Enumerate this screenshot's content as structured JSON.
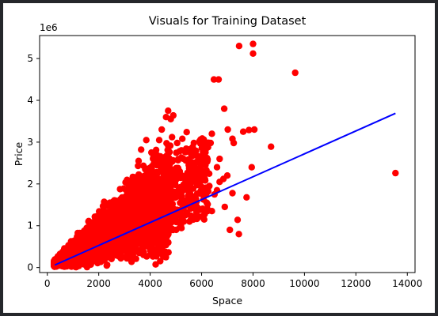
{
  "chart_data": {
    "type": "scatter",
    "title": "Visuals for Training Dataset",
    "xlabel": "Space",
    "ylabel": "Price",
    "y_offset_text": "1e6",
    "xlim": [
      -300,
      14300
    ],
    "ylim": [
      -0.12,
      5.55
    ],
    "x_ticks": [
      0,
      2000,
      4000,
      6000,
      8000,
      10000,
      12000,
      14000
    ],
    "x_tick_labels": [
      "0",
      "2000",
      "4000",
      "6000",
      "8000",
      "10000",
      "12000",
      "14000"
    ],
    "y_ticks": [
      0,
      1,
      2,
      3,
      4,
      5
    ],
    "y_tick_labels": [
      "0",
      "1",
      "2",
      "3",
      "4",
      "5"
    ],
    "grid": false,
    "colors": {
      "points": "#ff0000",
      "line": "#0000ff"
    },
    "series": [
      {
        "kind": "scatter",
        "points": [
          [
            7460,
            5.3
          ],
          [
            8000,
            5.35
          ],
          [
            8000,
            5.12
          ],
          [
            9640,
            4.66
          ],
          [
            6480,
            4.5
          ],
          [
            6660,
            4.5
          ],
          [
            13540,
            2.26
          ],
          [
            8700,
            2.89
          ],
          [
            7840,
            3.29
          ],
          [
            8050,
            3.3
          ],
          [
            7620,
            3.25
          ],
          [
            6880,
            3.8
          ],
          [
            7020,
            3.3
          ],
          [
            7250,
            2.98
          ],
          [
            7200,
            3.08
          ],
          [
            7950,
            2.4
          ],
          [
            7750,
            1.68
          ],
          [
            7400,
            1.14
          ],
          [
            7100,
            0.9
          ],
          [
            7450,
            0.8
          ],
          [
            7200,
            1.78
          ],
          [
            7000,
            2.2
          ],
          [
            6400,
            3.2
          ],
          [
            6700,
            2.6
          ],
          [
            6600,
            2.4
          ],
          [
            6350,
            2.98
          ],
          [
            6850,
            2.12
          ],
          [
            6250,
            2.88
          ],
          [
            6150,
            2.45
          ],
          [
            5850,
            2.2
          ],
          [
            5650,
            2.85
          ],
          [
            5500,
            2.45
          ],
          [
            5420,
            3.24
          ],
          [
            5250,
            3.08
          ],
          [
            5050,
            2.98
          ],
          [
            4850,
            3.12
          ],
          [
            4620,
            3.6
          ],
          [
            4700,
            3.75
          ],
          [
            4900,
            3.64
          ],
          [
            4800,
            3.55
          ],
          [
            4450,
            3.3
          ],
          [
            4350,
            3.05
          ],
          [
            4050,
            2.75
          ],
          [
            3850,
            3.05
          ],
          [
            3650,
            2.82
          ],
          [
            5700,
            2.98
          ],
          [
            6300,
            1.95
          ],
          [
            6200,
            1.55
          ],
          [
            6400,
            1.35
          ],
          [
            6100,
            1.15
          ],
          [
            5950,
            2.05
          ],
          [
            6500,
            1.75
          ],
          [
            5150,
            2.3
          ],
          [
            4980,
            1.98
          ],
          [
            4750,
            2.45
          ],
          [
            4250,
            2.45
          ],
          [
            3550,
            2.55
          ],
          [
            3900,
            2.35
          ],
          [
            4600,
            2.65
          ],
          [
            5600,
            1.65
          ],
          [
            6600,
            1.85
          ],
          [
            6900,
            1.45
          ],
          [
            5800,
            1.25
          ],
          [
            6700,
            2.05
          ]
        ]
      },
      {
        "kind": "line",
        "x": [
          290,
          13540
        ],
        "y": [
          0.06,
          3.69
        ]
      }
    ],
    "cloud": {
      "x_range": [
        260,
        7600
      ],
      "center_slope_per_1000": 0.34,
      "spread_frac": 0.42,
      "count": 4200,
      "seed": 12345
    }
  }
}
